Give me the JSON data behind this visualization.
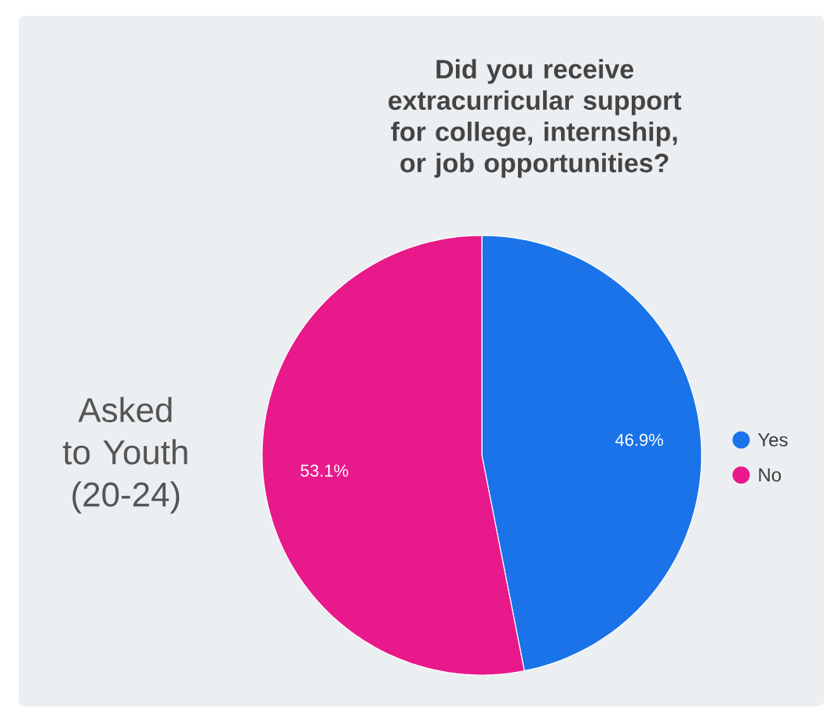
{
  "chart_data": {
    "type": "pie",
    "title": "Did you receive extracurricular support for college, internship, or job opportunities?",
    "categories": [
      "Yes",
      "No"
    ],
    "values": [
      46.9,
      53.1
    ],
    "value_labels": [
      "46.9%",
      "53.1%"
    ],
    "colors": [
      "#1a73e8",
      "#e8198b"
    ],
    "legend": "right",
    "annotations": [
      "Asked to Youth (20-24)"
    ]
  }
}
